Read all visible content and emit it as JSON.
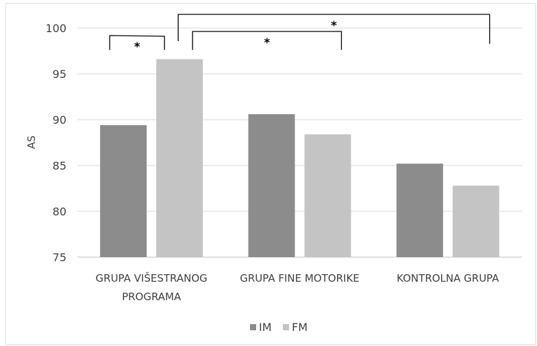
{
  "chart_data": {
    "type": "bar",
    "title": "",
    "xlabel": "",
    "ylabel": "AS",
    "ylim": [
      75,
      100
    ],
    "yticks": [
      75,
      80,
      85,
      90,
      95,
      100
    ],
    "grid": true,
    "legend_position": "bottom",
    "categories": [
      [
        "GRUPA VIŠESTRANOG",
        "PROGRAMA"
      ],
      [
        "GRUPA FINE MOTORIKE"
      ],
      [
        "KONTROLNA GRUPA"
      ]
    ],
    "series": [
      {
        "name": "IM",
        "color": "#8c8c8c",
        "values": [
          89.4,
          90.6,
          85.2
        ]
      },
      {
        "name": "FM",
        "color": "#c4c4c4",
        "values": [
          96.6,
          88.4,
          82.8
        ]
      }
    ],
    "significance": [
      {
        "from": [
          0,
          0
        ],
        "to": [
          0,
          1
        ],
        "label": "*"
      },
      {
        "from": [
          0,
          1
        ],
        "to": [
          1,
          1
        ],
        "label": "*"
      },
      {
        "from": [
          0,
          1
        ],
        "to": [
          2,
          1
        ],
        "label": "*"
      }
    ]
  }
}
